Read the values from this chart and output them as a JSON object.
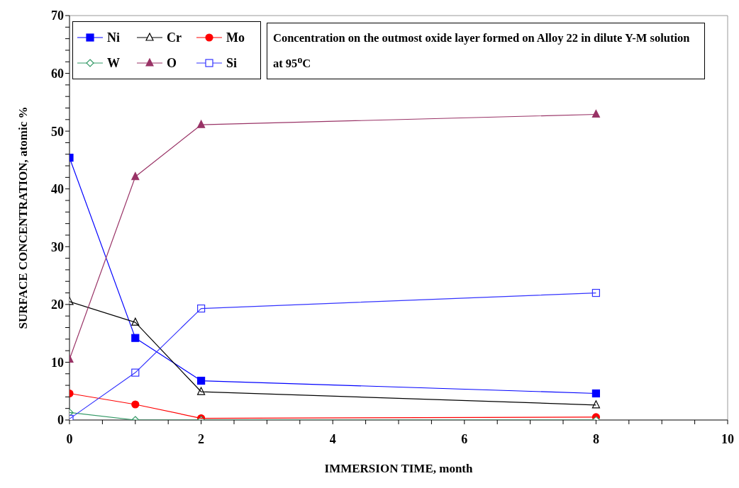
{
  "chart_data": {
    "type": "line",
    "title": "Concentration on the outmost oxide layer formed on Alloy 22 in dilute Y-M solution at 95$^{o}$C",
    "xlabel": "IMMERSION TIME, month",
    "ylabel": "SURFACE CONCENTRATION, atomic %",
    "x": [
      0,
      1,
      2,
      8
    ],
    "series": [
      {
        "name": "Ni",
        "color": "#0000ff",
        "marker": "square",
        "values": [
          45.4,
          14.2,
          6.8,
          4.6
        ]
      },
      {
        "name": "Cr",
        "color": "#000000",
        "marker": "triangle",
        "values": [
          20.5,
          16.9,
          4.9,
          2.6
        ]
      },
      {
        "name": "Mo",
        "color": "#ff0000",
        "marker": "circle",
        "values": [
          4.6,
          2.7,
          0.3,
          0.5
        ]
      },
      {
        "name": "W",
        "color": "#339966",
        "marker": "diamond",
        "values": [
          1.3,
          0,
          0,
          0
        ]
      },
      {
        "name": "O",
        "color": "#993366",
        "marker": "triangle",
        "values": [
          10.5,
          42.1,
          51.1,
          52.9
        ]
      },
      {
        "name": "Si",
        "color": "#3333ff",
        "marker": "square",
        "values": [
          0.2,
          8.2,
          19.3,
          22.0
        ]
      }
    ],
    "xlim": [
      0,
      10
    ],
    "xticks": [
      0,
      {
        "value": 0.5,
        "label": null
      },
      {
        "value": 1,
        "label": null
      },
      {
        "value": 1.5,
        "label": null
      },
      2,
      {
        "value": 2.5,
        "label": null
      },
      {
        "value": 3,
        "label": null
      },
      {
        "value": 3.5,
        "label": null
      },
      4,
      {
        "value": 4.5,
        "label": null
      },
      {
        "value": 5,
        "label": null
      },
      {
        "value": 5.5,
        "label": null
      },
      6,
      {
        "value": 6.5,
        "label": null
      },
      {
        "value": 7,
        "label": null
      },
      {
        "value": 7.5,
        "label": null
      },
      8,
      {
        "value": 8.5,
        "label": null
      },
      {
        "value": 9,
        "label": null
      },
      {
        "value": 9.5,
        "label": null
      },
      10
    ],
    "ylim": [
      0,
      70
    ],
    "yticks": [
      0,
      {
        "value": 2,
        "label": null
      },
      {
        "value": 4,
        "label": null
      },
      {
        "value": 6,
        "label": null
      },
      {
        "value": 8,
        "label": null
      },
      10,
      {
        "value": 12,
        "label": null
      },
      {
        "value": 14,
        "label": null
      },
      {
        "value": 16,
        "label": null
      },
      {
        "value": 18,
        "label": null
      },
      20,
      {
        "value": 22,
        "label": null
      },
      {
        "value": 24,
        "label": null
      },
      {
        "value": 26,
        "label": null
      },
      {
        "value": 28,
        "label": null
      },
      30,
      {
        "value": 32,
        "label": null
      },
      {
        "value": 34,
        "label": null
      },
      {
        "value": 36,
        "label": null
      },
      {
        "value": 38,
        "label": null
      },
      40,
      {
        "value": 42,
        "label": null
      },
      {
        "value": 44,
        "label": null
      },
      {
        "value": 46,
        "label": null
      },
      {
        "value": 48,
        "label": null
      },
      50,
      {
        "value": 52,
        "label": null
      },
      {
        "value": 54,
        "label": null
      },
      {
        "value": 56,
        "label": null
      },
      {
        "value": 58,
        "label": null
      },
      60,
      {
        "value": 62,
        "label": null
      },
      {
        "value": 64,
        "label": null
      },
      {
        "value": 66,
        "label": null
      },
      {
        "value": 68,
        "label": null
      },
      70
    ],
    "grid": false,
    "legend": "top left",
    "line_style": "solid"
  }
}
